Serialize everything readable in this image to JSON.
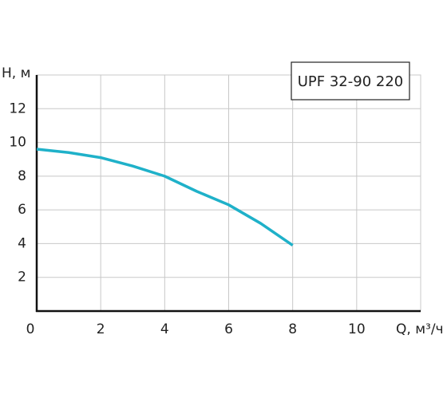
{
  "chart_data": {
    "type": "line",
    "y_label": "H, м",
    "x_label": "Q, м³/ч",
    "x": [
      0,
      1,
      2,
      3,
      4,
      5,
      6,
      7,
      8
    ],
    "series": [
      {
        "name": "UPF 32-90 220",
        "color": "#1fb1c9",
        "values": [
          9.6,
          9.4,
          9.1,
          8.6,
          8.0,
          7.1,
          6.3,
          5.2,
          3.9
        ]
      }
    ],
    "xlim": [
      0,
      12
    ],
    "ylim": [
      0,
      14
    ],
    "xticks": [
      0,
      2,
      4,
      6,
      8,
      10
    ],
    "yticks": [
      2,
      4,
      6,
      8,
      10,
      12
    ],
    "grid": true,
    "legend": "upper-right"
  }
}
